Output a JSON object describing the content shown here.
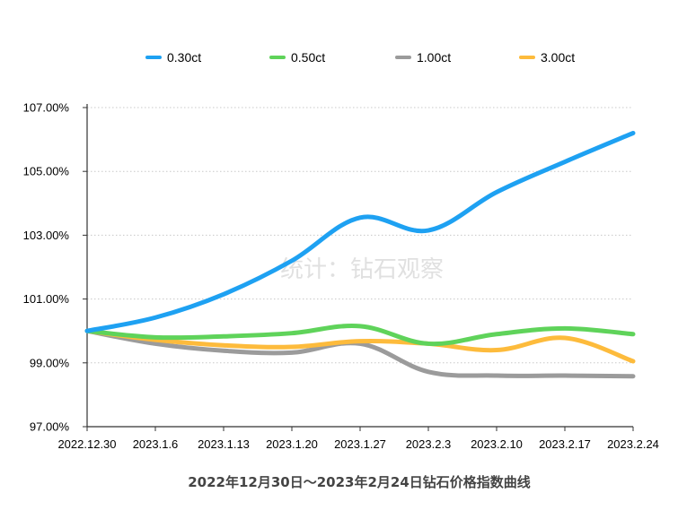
{
  "chart_data": {
    "type": "line",
    "title": "2022年12月30日～2023年2月24日钻石价格指数曲线",
    "watermark": "统计：钻石观察",
    "categories": [
      "2022.12.30",
      "2023.1.6",
      "2023.1.13",
      "2023.1.20",
      "2023.1.27",
      "2023.2.3",
      "2023.2.10",
      "2023.2.17",
      "2023.2.24"
    ],
    "ylim": [
      97,
      107
    ],
    "yticks": [
      97,
      99,
      101,
      103,
      105,
      107
    ],
    "ytick_labels": [
      "97.00%",
      "99.00%",
      "101.00%",
      "103.00%",
      "105.00%",
      "107.00%"
    ],
    "grid": "horizontal-dotted",
    "legend_position": "top",
    "series": [
      {
        "name": "0.30ct",
        "color": "#1ea1f2",
        "values": [
          100.0,
          100.42,
          101.15,
          102.2,
          103.55,
          103.15,
          104.35,
          105.3,
          106.2
        ]
      },
      {
        "name": "0.50ct",
        "color": "#5fd35a",
        "values": [
          100.0,
          99.8,
          99.83,
          99.93,
          100.15,
          99.6,
          99.9,
          100.08,
          99.9
        ]
      },
      {
        "name": "1.00ct",
        "color": "#9b9b9b",
        "values": [
          100.0,
          99.6,
          99.38,
          99.32,
          99.6,
          98.72,
          98.6,
          98.6,
          98.58
        ]
      },
      {
        "name": "3.00ct",
        "color": "#fdbb3c",
        "values": [
          100.0,
          99.72,
          99.55,
          99.5,
          99.68,
          99.6,
          99.4,
          99.78,
          99.05
        ]
      }
    ]
  }
}
